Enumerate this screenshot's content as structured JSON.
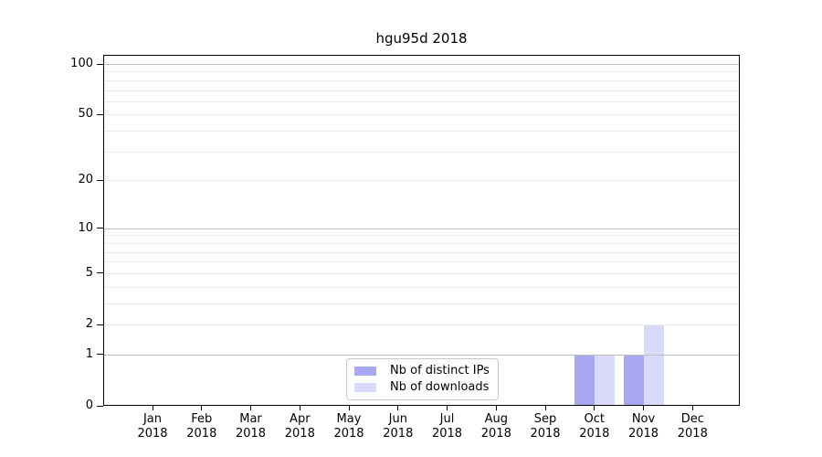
{
  "chart_data": {
    "type": "bar",
    "title": "hgu95d 2018",
    "months": [
      "Jan",
      "Feb",
      "Mar",
      "Apr",
      "May",
      "Jun",
      "Jul",
      "Aug",
      "Sep",
      "Oct",
      "Nov",
      "Dec"
    ],
    "year": "2018",
    "series": [
      {
        "name": "Nb of distinct IPs",
        "color": "#a7a7f2",
        "values": [
          0,
          0,
          0,
          0,
          0,
          0,
          0,
          0,
          0,
          1,
          1,
          0
        ]
      },
      {
        "name": "Nb of downloads",
        "color": "#d9d9f9",
        "values": [
          0,
          0,
          0,
          0,
          0,
          0,
          0,
          0,
          0,
          1,
          2,
          0
        ]
      }
    ],
    "y_axis": {
      "scale": "log10(1+x)",
      "ylim": [
        0,
        100
      ],
      "tick_values": [
        0,
        1,
        2,
        5,
        10,
        20,
        50,
        100
      ],
      "major_grid_values": [
        1,
        10,
        100
      ],
      "minor_grid_values": [
        2,
        3,
        4,
        5,
        6,
        7,
        8,
        9,
        20,
        30,
        40,
        50,
        60,
        70,
        80,
        90
      ]
    },
    "legend": {
      "entries": [
        "Nb of distinct IPs",
        "Nb of downloads"
      ],
      "position": "bottom-center"
    },
    "grid": true
  },
  "colors": {
    "bar_distinct_ips": "#a7a7f2",
    "bar_downloads": "#d9d9f9",
    "grid_major": "#bdbdbd",
    "grid_minor": "#ececec",
    "axis": "#000000",
    "legend_border": "#c8c8c8",
    "background": "#ffffff"
  }
}
